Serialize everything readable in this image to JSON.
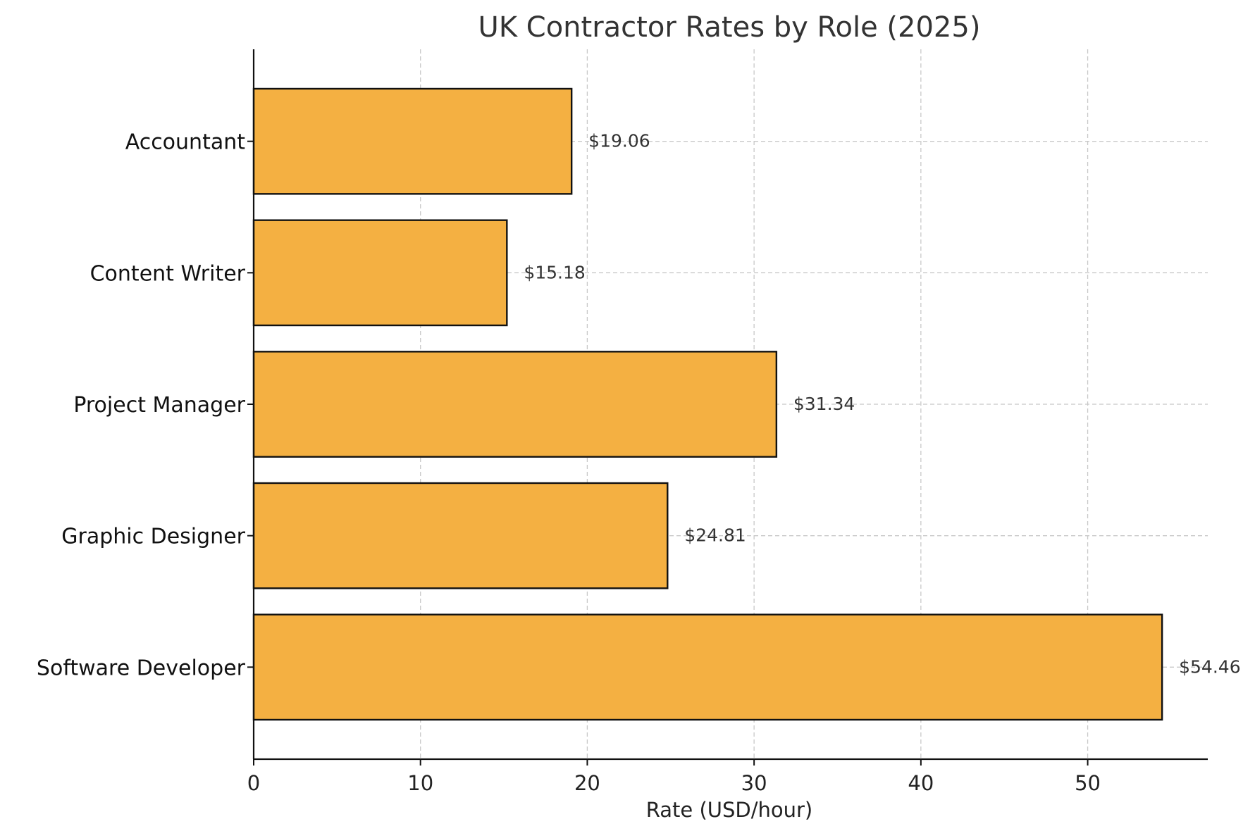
{
  "chart_data": {
    "type": "bar",
    "orientation": "horizontal",
    "title": "UK Contractor Rates by Role (2025)",
    "xlabel": "Rate (USD/hour)",
    "ylabel": "",
    "xlim": [
      0,
      57.2
    ],
    "xticks": [
      0,
      10,
      20,
      30,
      40,
      50
    ],
    "grid": true,
    "categories": [
      "Accountant",
      "Content Writer",
      "Project Manager",
      "Graphic Designer",
      "Software Developer"
    ],
    "values": [
      19.06,
      15.18,
      31.34,
      24.81,
      54.46
    ],
    "data_labels": [
      "$19.06",
      "$15.18",
      "$31.34",
      "$24.81",
      "$54.46"
    ],
    "bar_color": "#f4b042",
    "edge_color": "#111111"
  }
}
